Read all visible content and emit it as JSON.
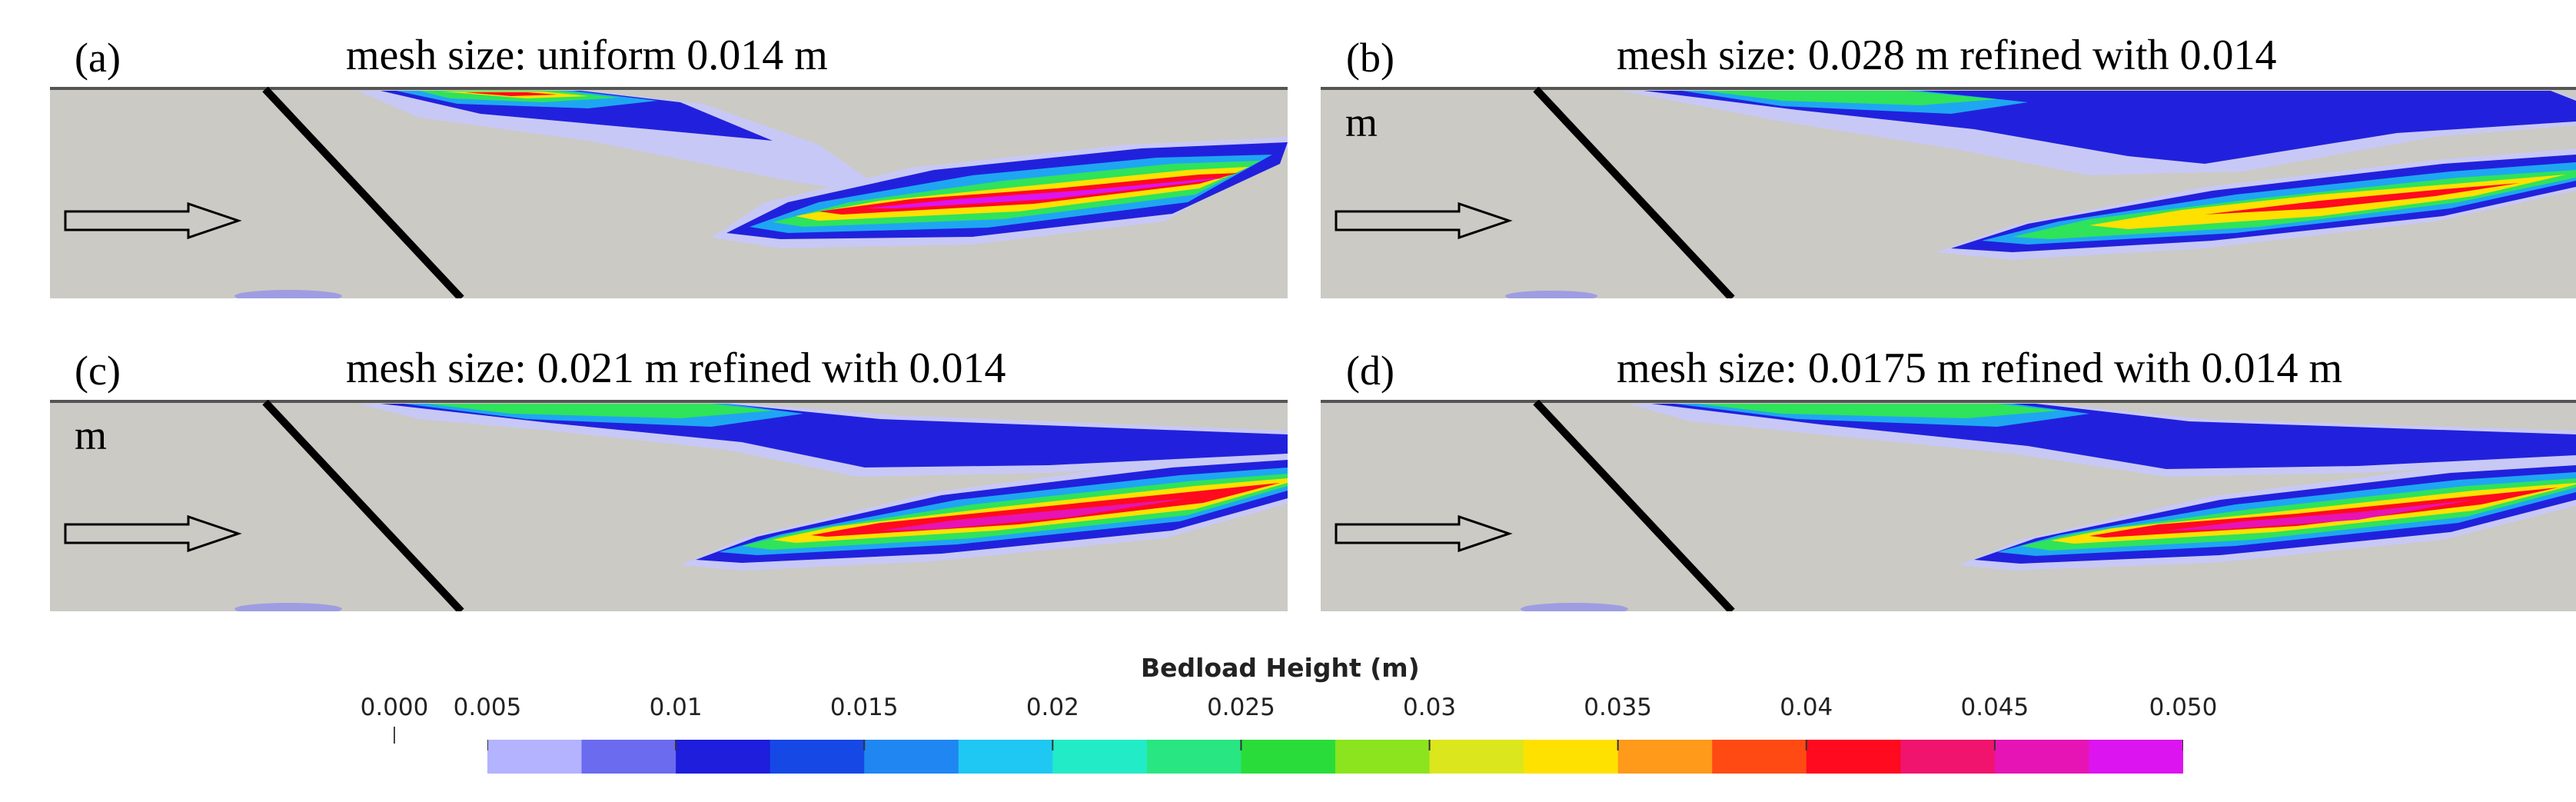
{
  "panels": [
    {
      "letter": "(a)",
      "title": "mesh size: uniform 0.014 m",
      "title_cont": ""
    },
    {
      "letter": "(b)",
      "title": "mesh size: 0.028 m refined with 0.014",
      "title_cont": "m"
    },
    {
      "letter": "(c)",
      "title": "mesh size: 0.021 m refined with 0.014",
      "title_cont": "m"
    },
    {
      "letter": "(d)",
      "title": "mesh size: 0.0175 m refined with 0.014 m",
      "title_cont": ""
    }
  ],
  "colorbar": {
    "title": "Bedload Height (m)",
    "min_label": "0.000",
    "ticks": [
      "0.005",
      "0.01",
      "0.015",
      "0.02",
      "0.025",
      "0.03",
      "0.035",
      "0.04",
      "0.045",
      "0.050"
    ],
    "colors": [
      "#b3b3ff",
      "#6b6bf0",
      "#1e1edc",
      "#1648e6",
      "#1f86f2",
      "#1fc8f2",
      "#22ecc8",
      "#28e682",
      "#2adc3a",
      "#8be41e",
      "#dce61c",
      "#ffe100",
      "#ff9a1a",
      "#ff4a14",
      "#ff0a1e",
      "#f0146e",
      "#e614b4",
      "#dc14f0"
    ]
  },
  "colors": {
    "background": "#cbcac4",
    "channel_wall": "#555555",
    "barrier": "#000000"
  }
}
